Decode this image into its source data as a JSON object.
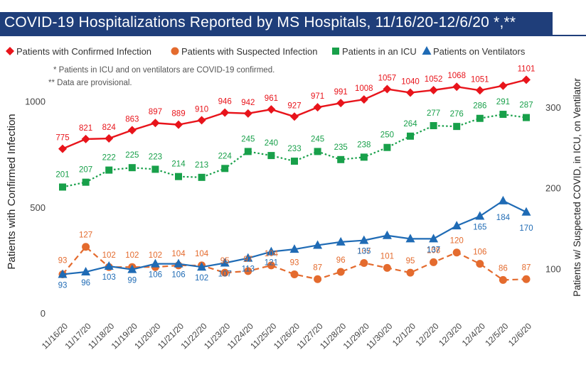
{
  "title": "COVID-19 Hospitalizations Reported by MS Hospitals, 11/16/20-12/6/20 *,**",
  "notes": [
    "* Patients in ICU and on ventilators are COVID-19 confirmed.",
    "** Data are provisional."
  ],
  "colors": {
    "title_bg": "#1f3e7a",
    "confirmed": "#e8141b",
    "suspected": "#e46b2e",
    "icu": "#18a04a",
    "ventilator": "#1f6bb5"
  },
  "chart_data": {
    "type": "line",
    "categories": [
      "11/16/20",
      "11/17/20",
      "11/18/20",
      "11/19/20",
      "11/20/20",
      "11/21/20",
      "11/22/20",
      "11/23/20",
      "11/24/20",
      "11/25/20",
      "11/26/20",
      "11/27/20",
      "11/28/20",
      "11/29/20",
      "11/30/20",
      "12/1/20",
      "12/2/20",
      "12/3/20",
      "12/4/20",
      "12/5/20",
      "12/6/20"
    ],
    "ylabel_left": "Patients with Confirmed Infection",
    "ylabel_right": "Patients w/ Suspected COVID, in ICU, on Ventilator",
    "ylim_left": [
      0,
      1100
    ],
    "yticks_left": [
      0,
      500,
      1000
    ],
    "ylim_right": [
      0,
      352
    ],
    "yticks_right": [
      100,
      200,
      300
    ],
    "grid": false,
    "legend_position": "top",
    "series": [
      {
        "name": "Patients with Confirmed Infection",
        "axis": "left",
        "marker": "diamond",
        "line": "solid",
        "color": "#e8141b",
        "values": [
          775,
          821,
          824,
          863,
          897,
          889,
          910,
          946,
          942,
          961,
          927,
          971,
          991,
          1008,
          1057,
          1040,
          1052,
          1068,
          1051,
          1073,
          1101
        ],
        "labels": [
          "775",
          "821",
          "824",
          "863",
          "897",
          "889",
          "910",
          "946",
          "942",
          "961",
          "927",
          "971",
          "991",
          "1008",
          "1057",
          "1040",
          "1052",
          "1068",
          "1051",
          "",
          "1101"
        ]
      },
      {
        "name": "Patients with Suspected Infection",
        "axis": "right",
        "marker": "circle",
        "line": "dashed",
        "color": "#e46b2e",
        "values": [
          93,
          127,
          102,
          102,
          102,
          104,
          104,
          95,
          97,
          104,
          93,
          87,
          96,
          107,
          101,
          95,
          108,
          120,
          106,
          86,
          87
        ],
        "labels": [
          "93",
          "127",
          "102",
          "102",
          "102",
          "104",
          "104",
          "95",
          "97",
          "104",
          "93",
          "87",
          "96",
          "107",
          "101",
          "95",
          "108",
          "120",
          "106",
          "86",
          "87"
        ]
      },
      {
        "name": "Patients in an ICU",
        "axis": "right",
        "marker": "square",
        "line": "dotted",
        "color": "#18a04a",
        "values": [
          201,
          207,
          222,
          225,
          223,
          214,
          213,
          224,
          245,
          240,
          233,
          245,
          235,
          238,
          250,
          264,
          277,
          276,
          286,
          291,
          287
        ],
        "labels": [
          "201",
          "207",
          "222",
          "225",
          "223",
          "214",
          "213",
          "224",
          "245",
          "240",
          "233",
          "245",
          "235",
          "238",
          "250",
          "264",
          "277",
          "276",
          "286",
          "291",
          "287"
        ]
      },
      {
        "name": "Patients on Ventilators",
        "axis": "right",
        "marker": "triangle",
        "line": "solid",
        "color": "#1f6bb5",
        "values": [
          93,
          96,
          103,
          99,
          106,
          106,
          102,
          107,
          113,
          121,
          124,
          129,
          133,
          135,
          141,
          137,
          137,
          153,
          165,
          184,
          170
        ],
        "labels": [
          "93",
          "96",
          "103",
          "99",
          "106",
          "106",
          "102",
          "107",
          "113",
          "121",
          "",
          "",
          "",
          "135",
          "",
          "",
          "137",
          "",
          "165",
          "184",
          "170"
        ]
      }
    ]
  }
}
